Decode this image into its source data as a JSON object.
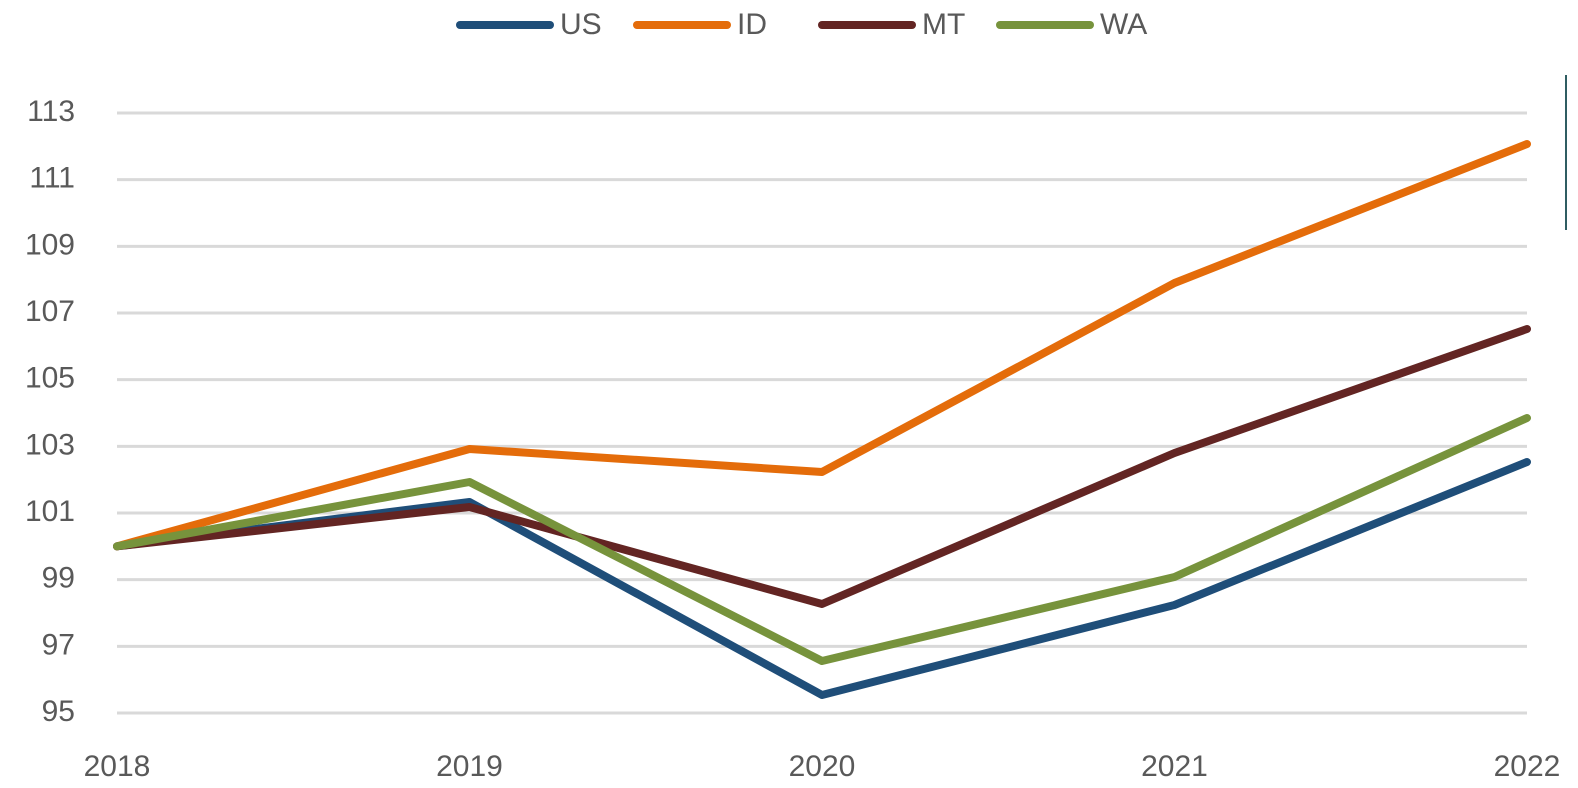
{
  "chart_data": {
    "type": "line",
    "x": [
      2018,
      2019,
      2020,
      2021,
      2022
    ],
    "xlim": [
      2018,
      2022
    ],
    "xticks": [
      2018,
      2019,
      2020,
      2021,
      2022
    ],
    "ylim": [
      95,
      113
    ],
    "yticks": [
      95,
      97,
      99,
      101,
      103,
      105,
      107,
      109,
      111,
      113
    ],
    "grid": true,
    "legend": "top",
    "series": [
      {
        "name": "US",
        "color": "#1f4e79",
        "values": [
          100,
          101.33,
          95.54,
          98.24,
          102.53
        ]
      },
      {
        "name": "ID",
        "color": "#e46c0a",
        "values": [
          100,
          102.92,
          102.23,
          107.9,
          112.07
        ]
      },
      {
        "name": "MT",
        "color": "#632523",
        "values": [
          100,
          101.18,
          98.27,
          102.8,
          106.52
        ]
      },
      {
        "name": "WA",
        "color": "#77933c",
        "values": [
          100,
          101.93,
          96.56,
          99.08,
          103.85
        ]
      }
    ]
  }
}
